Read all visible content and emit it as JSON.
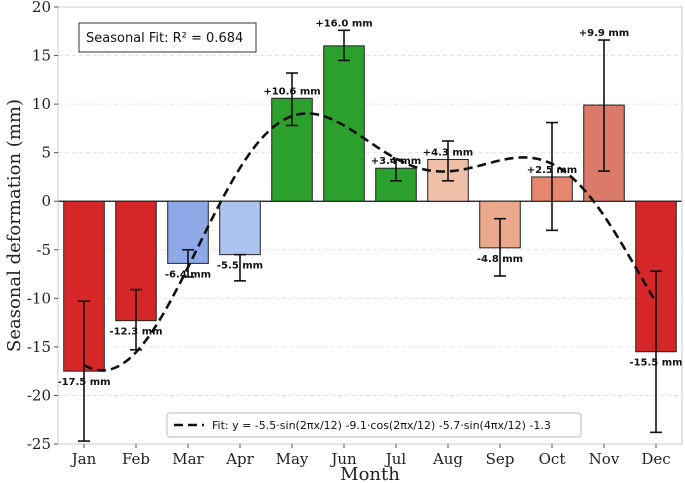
{
  "chart_data": {
    "type": "bar",
    "title": "",
    "xlabel": "Month",
    "ylabel": "Seasonal deformation (mm)",
    "ylim": [
      -25,
      20
    ],
    "yticks": [
      -25,
      -20,
      -15,
      -10,
      -5,
      0,
      5,
      10,
      15,
      20
    ],
    "ytick_labels": [
      "-25",
      "-20",
      "-15",
      "-10",
      "-5",
      "0",
      "5",
      "10",
      "15",
      "20"
    ],
    "grid": "horizontal-dashed",
    "categories": [
      "Jan",
      "Feb",
      "Mar",
      "Apr",
      "May",
      "Jun",
      "Jul",
      "Aug",
      "Sep",
      "Oct",
      "Nov",
      "Dec"
    ],
    "values": [
      -17.5,
      -12.3,
      -6.4,
      -5.5,
      10.6,
      16.0,
      3.4,
      4.3,
      -4.8,
      2.5,
      9.9,
      -15.5
    ],
    "error_bars": [
      [
        -24.7,
        -10.3
      ],
      [
        -15.3,
        -9.1
      ],
      [
        -7.8,
        -5.0
      ],
      [
        -8.2,
        -5.5
      ],
      [
        7.8,
        13.2
      ],
      [
        14.5,
        17.6
      ],
      [
        2.1,
        4.3
      ],
      [
        2.1,
        6.2
      ],
      [
        -7.7,
        -1.8
      ],
      [
        -3.0,
        8.1
      ],
      [
        3.1,
        16.6
      ],
      [
        -23.8,
        -7.2
      ]
    ],
    "bar_labels": [
      "-17.5 mm",
      "-12.3 mm",
      "-6.4 mm",
      "-5.5 mm",
      "+10.6 mm",
      "+16.0 mm",
      "+3.4 mm",
      "+4.3 mm",
      "-4.8 mm",
      "+2.5 mm",
      "+9.9 mm",
      "-15.5 mm"
    ],
    "bar_colors": [
      "#d62728",
      "#d62728",
      "#8fa8e8",
      "#aec4f0",
      "#2ca02c",
      "#2ca02c",
      "#2ca02c",
      "#efbfa8",
      "#eaa88d",
      "#e5866e",
      "#d97a6a",
      "#d62728"
    ],
    "fit": {
      "label": "Fit: y = -5.5·sin(2πx/12) -9.1·cos(2πx/12) -5.7·sin(4πx/12) -1.3",
      "a_sin": -5.5,
      "b_cos": -9.1,
      "c_sin2": -5.7,
      "d": -1.3
    },
    "annotation": "Seasonal Fit: R² = 0.684",
    "legend_position": "bottom-center"
  },
  "colors": {
    "positive": "#2ca02c",
    "negative": "#d62728",
    "axis": "#cccccc",
    "fit_line": "#111111"
  }
}
